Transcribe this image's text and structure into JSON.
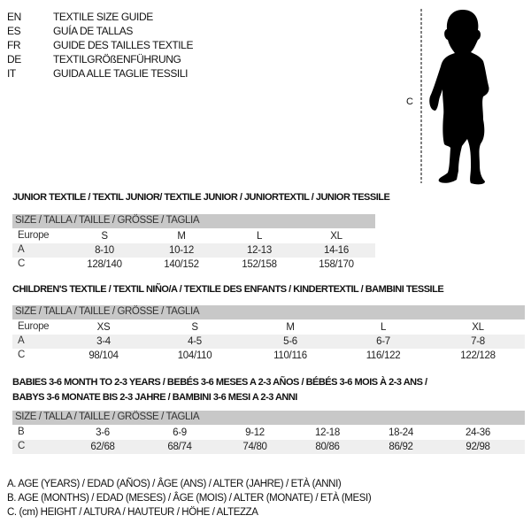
{
  "languages": [
    {
      "code": "EN",
      "label": "TEXTILE SIZE GUIDE"
    },
    {
      "code": "ES",
      "label": "GUÍA DE TALLAS"
    },
    {
      "code": "FR",
      "label": "GUIDE DES TAILLES TEXTILE"
    },
    {
      "code": "DE",
      "label": "TEXTILGRÖßENFÜHRUNG"
    },
    {
      "code": "IT",
      "label": "GUIDA ALLE TAGLIE TESSILI"
    }
  ],
  "figure": {
    "measure_label": "C"
  },
  "junior": {
    "title": "JUNIOR TEXTILE / TEXTIL JUNIOR/ TEXTILE JUNIOR / JUNIORTEXTIL / JUNIOR TESSILE",
    "header": "SIZE / TALLA / TAILLE / GRÖSSE / TAGLIA",
    "rows": [
      {
        "label": "Europe",
        "values": [
          "S",
          "M",
          "L",
          "XL"
        ]
      },
      {
        "label": "A",
        "values": [
          "8-10",
          "10-12",
          "12-13",
          "14-16"
        ]
      },
      {
        "label": "C",
        "values": [
          "128/140",
          "140/152",
          "152/158",
          "158/170"
        ]
      }
    ]
  },
  "children": {
    "title": "CHILDREN'S TEXTILE / TEXTIL NIÑO/A / TEXTILE DES ENFANTS / KINDERTEXTIL / BAMBINI TESSILE",
    "header": "SIZE / TALLA / TAILLE / GRÖSSE / TAGLIA",
    "rows": [
      {
        "label": "Europe",
        "values": [
          "XS",
          "S",
          "M",
          "L",
          "XL"
        ]
      },
      {
        "label": "A",
        "values": [
          "3-4",
          "4-5",
          "5-6",
          "6-7",
          "7-8"
        ]
      },
      {
        "label": "C",
        "values": [
          "98/104",
          "104/110",
          "110/116",
          "116/122",
          "122/128"
        ]
      }
    ]
  },
  "babies": {
    "title_line1": "BABIES 3-6 MONTH TO 2-3 YEARS / BEBÉS 3-6 MESES A 2-3 AÑOS / BÉBÉS 3-6 MOIS À 2-3 ANS /",
    "title_line2": "BABYS 3-6 MONATE BIS 2-3 JAHRE / BAMBINI 3-6 MESI A 2-3 ANNI",
    "header": "SIZE / TALLA / TAILLE / GRÖSSE / TAGLIA",
    "rows": [
      {
        "label": "B",
        "values": [
          "3-6",
          "6-9",
          "9-12",
          "12-18",
          "18-24",
          "24-36"
        ]
      },
      {
        "label": "C",
        "values": [
          "62/68",
          "68/74",
          "74/80",
          "80/86",
          "86/92",
          "92/98"
        ]
      }
    ]
  },
  "legend": [
    "A. AGE (YEARS) / EDAD (AÑOS) / ÂGE (ANS) / ALTER (JAHRE) / ETÀ (ANNI)",
    "B. AGE (MONTHS) / EDAD (MESES) / ÂGE (MOIS) / ALTER (MONATE) / ETÀ (MESI)",
    "C. (cm) HEIGHT / ALTURA / HAUTEUR / HÖHE / ALTEZZA"
  ]
}
